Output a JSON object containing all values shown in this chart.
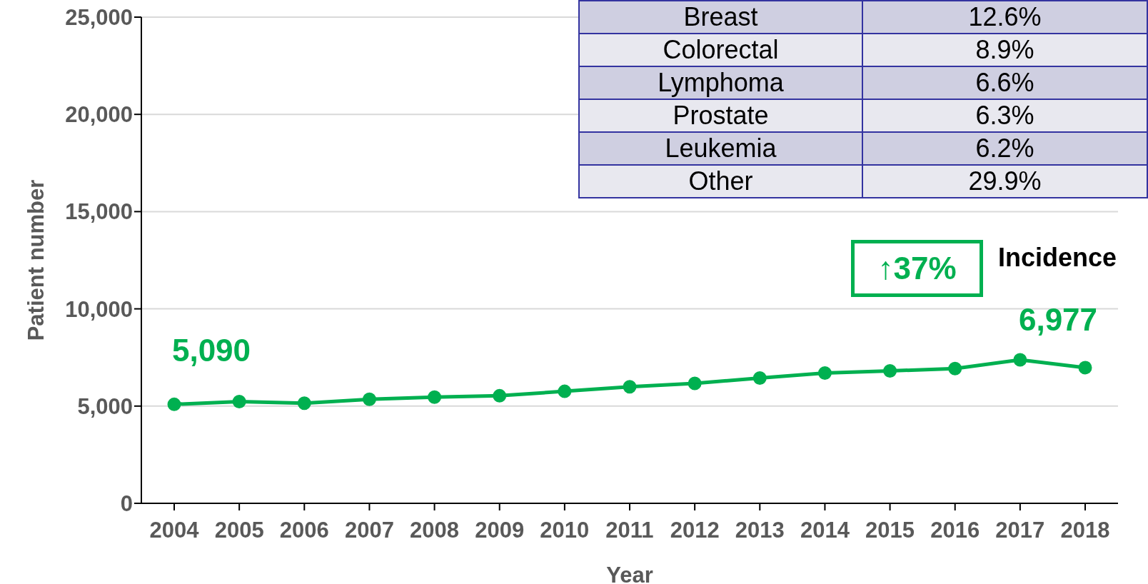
{
  "chart_data": [
    {
      "type": "line",
      "xlabel": "Year",
      "ylabel": "Patient number",
      "categories": [
        "2004",
        "2005",
        "2006",
        "2007",
        "2008",
        "2009",
        "2010",
        "2011",
        "2012",
        "2013",
        "2014",
        "2015",
        "2016",
        "2017",
        "2018"
      ],
      "series": [
        {
          "name": "Incidence",
          "color": "#00b050",
          "values": [
            5090,
            5230,
            5150,
            5350,
            5460,
            5530,
            5760,
            5990,
            6170,
            6440,
            6700,
            6810,
            6930,
            7380,
            6977
          ],
          "value_labels": [
            "5,090",
            null,
            null,
            null,
            null,
            null,
            null,
            null,
            null,
            null,
            null,
            null,
            null,
            null,
            "6,977"
          ]
        }
      ],
      "ylim": [
        0,
        25000
      ],
      "yticks": [
        {
          "value": 0,
          "label": "0"
        },
        {
          "value": 5000,
          "label": "5,000"
        },
        {
          "value": 10000,
          "label": "10,000"
        },
        {
          "value": 15000,
          "label": "15,000"
        },
        {
          "value": 20000,
          "label": "20,000"
        },
        {
          "value": 25000,
          "label": "25,000"
        }
      ],
      "grid": "y",
      "marker": "circle",
      "legend": false,
      "annotations": [
        "↑37%"
      ]
    },
    {
      "type": "other",
      "annotations": [
        "Breast",
        "12.6%",
        "Colorectal",
        "8.9%",
        "Lymphoma",
        "6.6%",
        "Prostate",
        "6.3%",
        "Leukemia",
        "6.2%",
        "Other",
        "29.9%"
      ]
    }
  ]
}
